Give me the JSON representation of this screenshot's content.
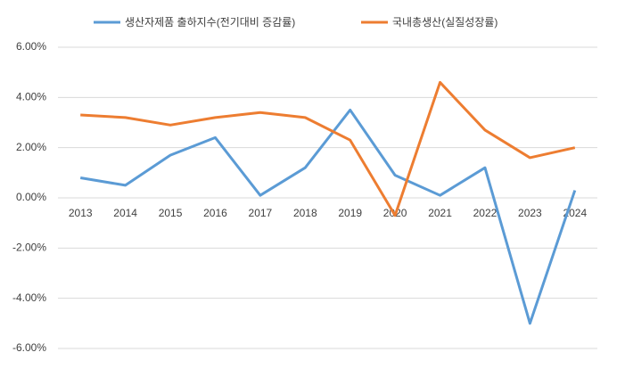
{
  "chart_data": {
    "type": "line",
    "categories": [
      "2013",
      "2014",
      "2015",
      "2016",
      "2017",
      "2018",
      "2019",
      "2020",
      "2021",
      "2022",
      "2023",
      "2024"
    ],
    "series": [
      {
        "name": "생산자제품 출하지수(전기대비 증감률)",
        "color": "#5b9bd5",
        "values": [
          0.8,
          0.5,
          1.7,
          2.4,
          0.1,
          1.2,
          3.5,
          0.9,
          0.1,
          1.2,
          -5.0,
          0.3
        ]
      },
      {
        "name": "국내총생산(실질성장률)",
        "color": "#ed7d31",
        "values": [
          3.3,
          3.2,
          2.9,
          3.2,
          3.4,
          3.2,
          2.3,
          -0.7,
          4.6,
          2.7,
          1.6,
          2.0
        ]
      }
    ],
    "ylim": [
      -6,
      6
    ],
    "yticks": [
      {
        "value": -6,
        "label": "-6.00%"
      },
      {
        "value": -4,
        "label": "-4.00%"
      },
      {
        "value": -2,
        "label": "-2.00%"
      },
      {
        "value": 0,
        "label": "0.00%"
      },
      {
        "value": 2,
        "label": "2.00%"
      },
      {
        "value": 4,
        "label": "4.00%"
      },
      {
        "value": 6,
        "label": "6.00%"
      }
    ],
    "grid": true,
    "legend": "top"
  }
}
